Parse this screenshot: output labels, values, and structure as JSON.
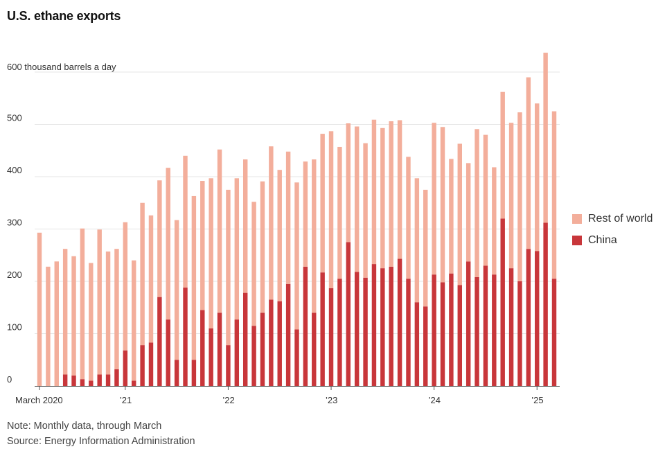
{
  "chart_data": {
    "type": "bar",
    "stacked": true,
    "title": "U.S. ethane exports",
    "ylabel": "600 thousand barrels a day",
    "ylim": [
      0,
      600
    ],
    "yticks": [
      0,
      100,
      200,
      300,
      400,
      500
    ],
    "x_start": "March 2020",
    "x_end": "March 2025",
    "x_tick_labels": [
      {
        "label": "March 2020",
        "index": 0
      },
      {
        "label": "’21",
        "index": 10
      },
      {
        "label": "’22",
        "index": 22
      },
      {
        "label": "’23",
        "index": 34
      },
      {
        "label": "’24",
        "index": 46
      },
      {
        "label": "’25",
        "index": 58
      }
    ],
    "series": [
      {
        "name": "China",
        "color": "#c8363a",
        "values": [
          0,
          0,
          0,
          22,
          20,
          13,
          10,
          22,
          22,
          32,
          68,
          10,
          78,
          83,
          170,
          127,
          50,
          188,
          50,
          145,
          110,
          140,
          78,
          127,
          178,
          115,
          140,
          165,
          162,
          195,
          108,
          228,
          140,
          217,
          187,
          205,
          275,
          218,
          207,
          233,
          225,
          228,
          243,
          205,
          160,
          152,
          213,
          198,
          215,
          193,
          238,
          208,
          230,
          213,
          320,
          225,
          200,
          262,
          258,
          312,
          205
        ]
      },
      {
        "name": "Rest of world",
        "color": "#f3ae9b",
        "values": [
          293,
          228,
          238,
          240,
          228,
          288,
          225,
          277,
          235,
          230,
          245,
          230,
          272,
          243,
          223,
          290,
          267,
          252,
          313,
          247,
          287,
          312,
          297,
          270,
          255,
          237,
          251,
          293,
          251,
          253,
          281,
          201,
          293,
          265,
          300,
          252,
          227,
          278,
          257,
          276,
          268,
          278,
          265,
          233,
          237,
          223,
          290,
          297,
          219,
          270,
          188,
          283,
          250,
          205,
          242,
          278,
          323,
          328,
          282,
          325,
          320
        ]
      }
    ],
    "legend": [
      "Rest of world",
      "China"
    ]
  },
  "legend": {
    "rest_of_world": "Rest of world",
    "china": "China"
  },
  "footer": {
    "note": "Note: Monthly data, through March",
    "source": "Source: Energy Information Administration"
  }
}
